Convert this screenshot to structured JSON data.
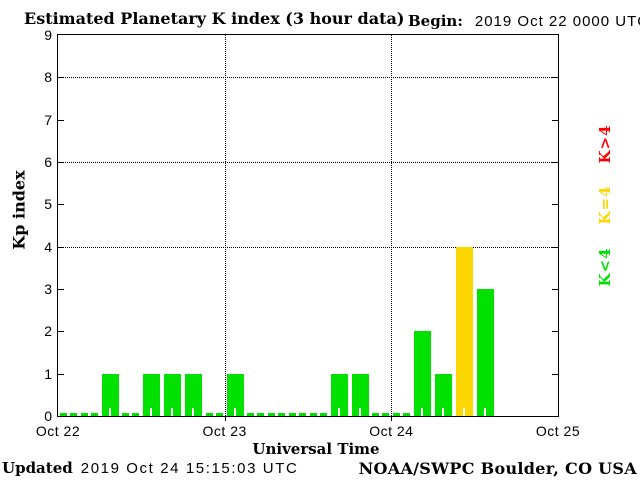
{
  "chart_data": {
    "type": "bar",
    "title": "Estimated Planetary K index (3 hour data)",
    "begin_label": "Begin:",
    "begin_value": "2019 Oct 22 0000 UTC",
    "xlabel": "Universal Time",
    "ylabel": "Kp index",
    "ylim": [
      0,
      9
    ],
    "y_ticks": [
      0,
      1,
      2,
      3,
      4,
      5,
      6,
      7,
      8,
      9
    ],
    "dotted_hlines": [
      4,
      6,
      8
    ],
    "x_tick_labels": [
      "Oct 22",
      "Oct 23",
      "Oct 24",
      "Oct 25"
    ],
    "hours_per_bar": 3,
    "bars_per_day": 8,
    "bars": [
      {
        "day": "Oct 22",
        "kp": [
          0,
          0,
          1,
          0,
          1,
          1,
          1,
          0
        ]
      },
      {
        "day": "Oct 23",
        "kp": [
          1,
          0,
          0,
          0,
          0,
          1,
          1,
          0
        ]
      },
      {
        "day": "Oct 24",
        "kp": [
          0,
          2,
          1,
          4,
          3
        ]
      }
    ],
    "palette": {
      "green": "#00E100",
      "yellow": "#FFD700",
      "red": "#FF0000"
    },
    "color_rules": [
      {
        "condition": "K<4",
        "color": "#00E100"
      },
      {
        "condition": "K=4",
        "color": "#FFD700"
      },
      {
        "condition": "K>4",
        "color": "#FF0000"
      }
    ],
    "legend": [
      {
        "label": "K>4",
        "color": "#FF0000"
      },
      {
        "label": "K=4",
        "color": "#FFD700"
      },
      {
        "label": "K<4",
        "color": "#00E100"
      }
    ],
    "grid": "dotted horizontal lines at Kp 4,6,8; dotted vertical lines at day boundaries"
  },
  "footer": {
    "updated_label": "Updated",
    "updated_value": "2019 Oct 24 15:15:03 UTC",
    "credit": "NOAA/SWPC Boulder, CO USA"
  }
}
